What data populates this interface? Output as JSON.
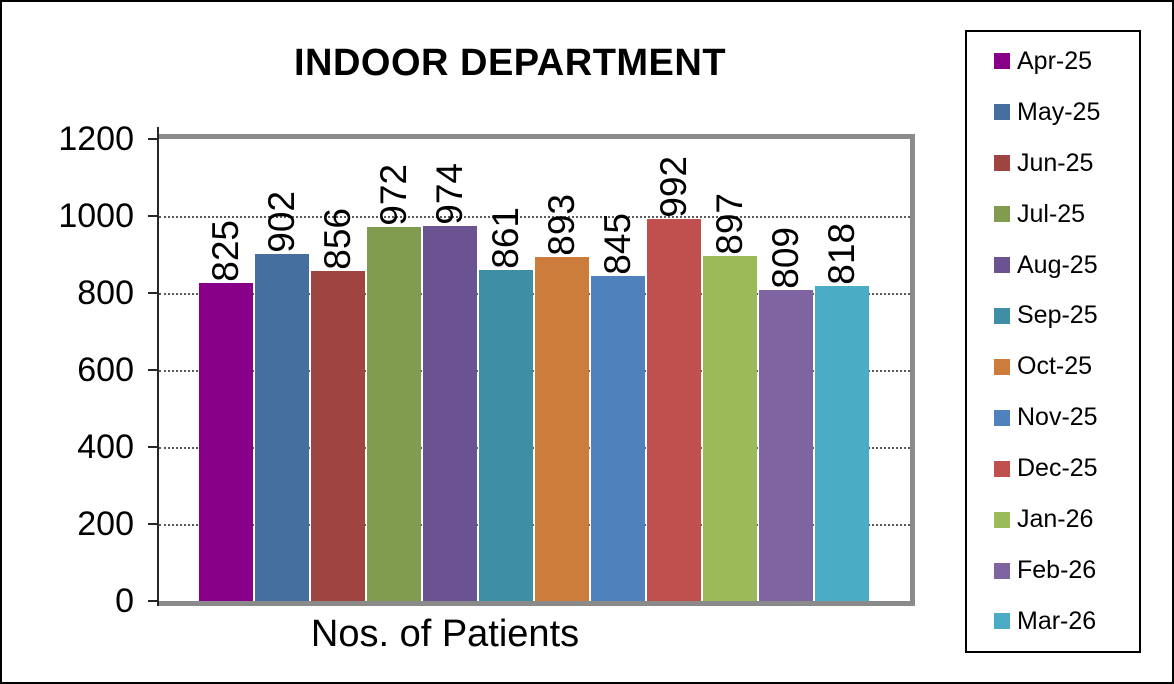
{
  "chart_data": {
    "type": "bar",
    "title": "INDOOR DEPARTMENT",
    "xlabel": "Nos. of Patients",
    "ylabel": "",
    "categories": [
      "Apr-25",
      "May-25",
      "Jun-25",
      "Jul-25",
      "Aug-25",
      "Sep-25",
      "Oct-25",
      "Nov-25",
      "Dec-25",
      "Jan-26",
      "Feb-26",
      "Mar-26"
    ],
    "values": [
      825,
      902,
      856,
      972,
      974,
      861,
      893,
      845,
      992,
      897,
      809,
      818
    ],
    "bar_colors": [
      "#880088",
      "#456F9E",
      "#A04441",
      "#819C4F",
      "#6A5390",
      "#3E8EA5",
      "#CD7D3B",
      "#4F81BD",
      "#C0504D",
      "#9BBB59",
      "#8064A2",
      "#4BACC6"
    ],
    "ylim": [
      0,
      1200
    ],
    "yticks": [
      0,
      200,
      400,
      600,
      800,
      1000,
      1200
    ],
    "grid": "horizontal-dotted",
    "legend_position": "right",
    "data_labels": {
      "rotation": -90,
      "position": "above-bar"
    }
  },
  "colors": {
    "background": "#ffffff",
    "frame_border": "#000000",
    "plot_border": "#8a8a8a",
    "axis_line": "#262626",
    "gridline": "#595959",
    "legend_border": "#000000",
    "text": "#000000"
  }
}
